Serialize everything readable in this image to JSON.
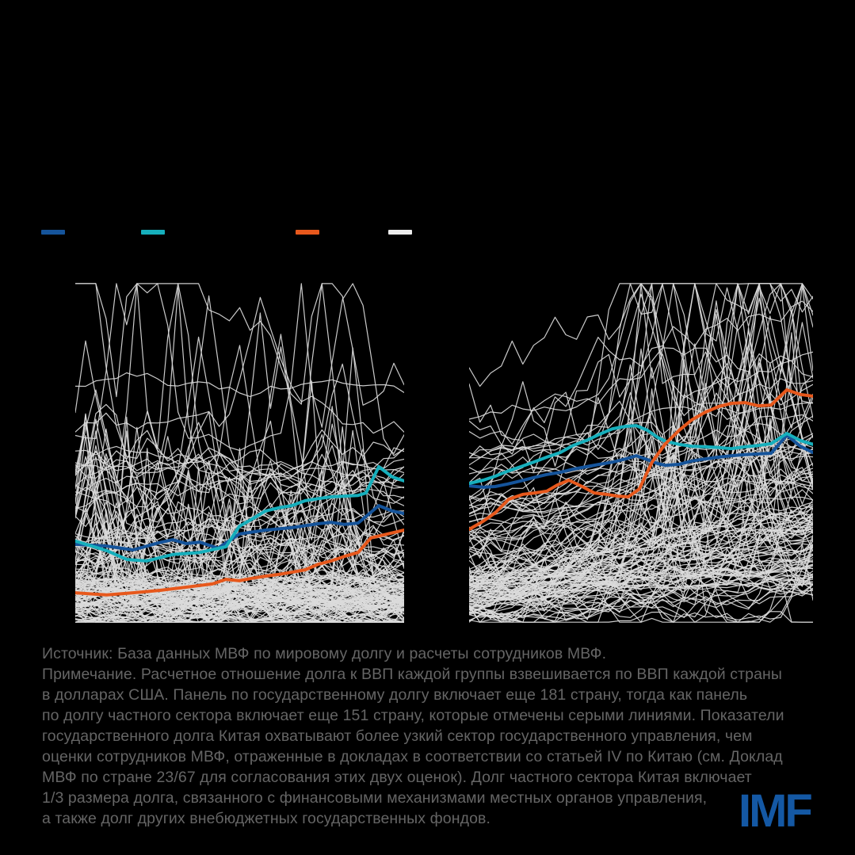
{
  "page": {
    "background_color": "#000000"
  },
  "legend": {
    "labels_visible": false,
    "swatches": [
      {
        "id": "blue",
        "color": "#15549B"
      },
      {
        "id": "teal",
        "color": "#16AFBC"
      },
      {
        "id": "orange",
        "color": "#E7581C"
      },
      {
        "id": "white",
        "color": "#ECECEC"
      }
    ]
  },
  "chart_data": [
    {
      "type": "line",
      "panel": "left",
      "axes_visible": false,
      "coords": "normalized plot fractions: x 0=left to 1=right, y 0=bottom to 1=top",
      "series": [
        {
          "name": "blue-series",
          "color": "#15549B",
          "width": 4,
          "points": [
            [
              0.0,
              0.224
            ],
            [
              0.096,
              0.219
            ],
            [
              0.176,
              0.208
            ],
            [
              0.253,
              0.228
            ],
            [
              0.296,
              0.237
            ],
            [
              0.337,
              0.226
            ],
            [
              0.378,
              0.23
            ],
            [
              0.434,
              0.213
            ],
            [
              0.499,
              0.253
            ],
            [
              0.578,
              0.264
            ],
            [
              0.658,
              0.271
            ],
            [
              0.74,
              0.282
            ],
            [
              0.778,
              0.286
            ],
            [
              0.819,
              0.28
            ],
            [
              0.86,
              0.284
            ],
            [
              0.923,
              0.333
            ],
            [
              0.964,
              0.318
            ],
            [
              1.0,
              0.311
            ]
          ]
        },
        {
          "name": "teal-series",
          "color": "#16AFBC",
          "width": 4,
          "points": [
            [
              0.0,
              0.233
            ],
            [
              0.096,
              0.206
            ],
            [
              0.157,
              0.181
            ],
            [
              0.217,
              0.177
            ],
            [
              0.296,
              0.195
            ],
            [
              0.378,
              0.201
            ],
            [
              0.458,
              0.217
            ],
            [
              0.499,
              0.275
            ],
            [
              0.537,
              0.295
            ],
            [
              0.578,
              0.318
            ],
            [
              0.619,
              0.327
            ],
            [
              0.658,
              0.333
            ],
            [
              0.699,
              0.347
            ],
            [
              0.74,
              0.353
            ],
            [
              0.778,
              0.358
            ],
            [
              0.819,
              0.36
            ],
            [
              0.86,
              0.362
            ],
            [
              0.884,
              0.369
            ],
            [
              0.923,
              0.443
            ],
            [
              0.964,
              0.414
            ],
            [
              1.0,
              0.403
            ]
          ]
        },
        {
          "name": "orange-series",
          "color": "#E7581C",
          "width": 4,
          "points": [
            [
              0.0,
              0.087
            ],
            [
              0.096,
              0.081
            ],
            [
              0.176,
              0.087
            ],
            [
              0.258,
              0.094
            ],
            [
              0.337,
              0.103
            ],
            [
              0.417,
              0.112
            ],
            [
              0.458,
              0.125
            ],
            [
              0.499,
              0.121
            ],
            [
              0.537,
              0.128
            ],
            [
              0.578,
              0.134
            ],
            [
              0.619,
              0.139
            ],
            [
              0.658,
              0.145
            ],
            [
              0.699,
              0.152
            ],
            [
              0.74,
              0.168
            ],
            [
              0.778,
              0.177
            ],
            [
              0.819,
              0.19
            ],
            [
              0.86,
              0.201
            ],
            [
              0.899,
              0.242
            ],
            [
              0.94,
              0.251
            ],
            [
              1.0,
              0.264
            ]
          ]
        }
      ],
      "background_lines": {
        "count": 150,
        "seed": 7,
        "color": "#DBDBDB",
        "width": 1.2,
        "trend": 0.0,
        "spike_bias": "left",
        "note": "unlabeled gray country lines"
      }
    },
    {
      "type": "line",
      "panel": "right",
      "axes_visible": false,
      "coords": "normalized plot fractions: x 0=left to 1=right, y 0=bottom to 1=top",
      "series": [
        {
          "name": "blue-series",
          "color": "#15549B",
          "width": 4,
          "points": [
            [
              0.0,
              0.389
            ],
            [
              0.041,
              0.385
            ],
            [
              0.076,
              0.387
            ],
            [
              0.111,
              0.394
            ],
            [
              0.15,
              0.403
            ],
            [
              0.187,
              0.412
            ],
            [
              0.226,
              0.421
            ],
            [
              0.265,
              0.427
            ],
            [
              0.302,
              0.436
            ],
            [
              0.341,
              0.443
            ],
            [
              0.38,
              0.45
            ],
            [
              0.417,
              0.456
            ],
            [
              0.456,
              0.465
            ],
            [
              0.486,
              0.474
            ],
            [
              0.518,
              0.463
            ],
            [
              0.548,
              0.452
            ],
            [
              0.571,
              0.447
            ],
            [
              0.611,
              0.45
            ],
            [
              0.647,
              0.459
            ],
            [
              0.687,
              0.465
            ],
            [
              0.726,
              0.47
            ],
            [
              0.763,
              0.474
            ],
            [
              0.802,
              0.477
            ],
            [
              0.841,
              0.479
            ],
            [
              0.878,
              0.481
            ],
            [
              0.924,
              0.532
            ],
            [
              0.963,
              0.501
            ],
            [
              1.0,
              0.483
            ]
          ]
        },
        {
          "name": "teal-series",
          "color": "#16AFBC",
          "width": 4,
          "points": [
            [
              0.0,
              0.396
            ],
            [
              0.041,
              0.405
            ],
            [
              0.076,
              0.416
            ],
            [
              0.111,
              0.43
            ],
            [
              0.15,
              0.443
            ],
            [
              0.187,
              0.456
            ],
            [
              0.226,
              0.47
            ],
            [
              0.265,
              0.483
            ],
            [
              0.302,
              0.503
            ],
            [
              0.341,
              0.517
            ],
            [
              0.38,
              0.535
            ],
            [
              0.417,
              0.55
            ],
            [
              0.456,
              0.557
            ],
            [
              0.486,
              0.559
            ],
            [
              0.518,
              0.546
            ],
            [
              0.548,
              0.526
            ],
            [
              0.571,
              0.515
            ],
            [
              0.611,
              0.506
            ],
            [
              0.647,
              0.501
            ],
            [
              0.687,
              0.499
            ],
            [
              0.726,
              0.497
            ],
            [
              0.763,
              0.494
            ],
            [
              0.802,
              0.499
            ],
            [
              0.841,
              0.503
            ],
            [
              0.878,
              0.508
            ],
            [
              0.924,
              0.537
            ],
            [
              0.963,
              0.517
            ],
            [
              1.0,
              0.506
            ]
          ]
        },
        {
          "name": "orange-series",
          "color": "#E7581C",
          "width": 4,
          "points": [
            [
              0.0,
              0.266
            ],
            [
              0.041,
              0.289
            ],
            [
              0.076,
              0.313
            ],
            [
              0.115,
              0.351
            ],
            [
              0.157,
              0.365
            ],
            [
              0.191,
              0.369
            ],
            [
              0.226,
              0.374
            ],
            [
              0.256,
              0.391
            ],
            [
              0.29,
              0.405
            ],
            [
              0.329,
              0.387
            ],
            [
              0.364,
              0.369
            ],
            [
              0.399,
              0.365
            ],
            [
              0.433,
              0.36
            ],
            [
              0.463,
              0.358
            ],
            [
              0.495,
              0.38
            ],
            [
              0.532,
              0.456
            ],
            [
              0.571,
              0.508
            ],
            [
              0.611,
              0.546
            ],
            [
              0.647,
              0.575
            ],
            [
              0.687,
              0.597
            ],
            [
              0.726,
              0.613
            ],
            [
              0.763,
              0.622
            ],
            [
              0.802,
              0.624
            ],
            [
              0.841,
              0.615
            ],
            [
              0.878,
              0.617
            ],
            [
              0.924,
              0.66
            ],
            [
              0.963,
              0.647
            ],
            [
              1.0,
              0.642
            ]
          ]
        }
      ],
      "background_lines": {
        "count": 130,
        "seed": 13,
        "color": "#DBDBDB",
        "width": 1.2,
        "trend": 0.0045,
        "spike_bias": "right",
        "note": "unlabeled gray country lines"
      }
    }
  ],
  "footer": {
    "text_color": "#656565",
    "source_note_lines": [
      "Источник: База данных МВФ по мировому долгу и расчеты сотрудников МВФ.",
      "Примечание. Расчетное отношение долга к ВВП каждой группы взвешивается по ВВП каждой страны",
      "в долларах США. Панель по государственному долгу включает еще 181 страну, тогда как панель",
      "по долгу частного сектора включает еще 151 страну, которые отмечены серыми линиями. Показатели",
      "государственного долга Китая охватывают более узкий сектор государственного управления, чем",
      "оценки сотрудников МВФ, отраженные в докладах в соответствии со статьей IV по Китаю (см. Доклад",
      "МВФ по стране 23/67 для согласования этих двух оценок). Долг частного сектора Китая включает",
      "1/3 размера долга, связанного с финансовыми механизмами местных органов управления,",
      "а также долг других внебюджетных государственных фондов."
    ],
    "logo_text": "IMF",
    "logo_color": "#1458A4"
  }
}
